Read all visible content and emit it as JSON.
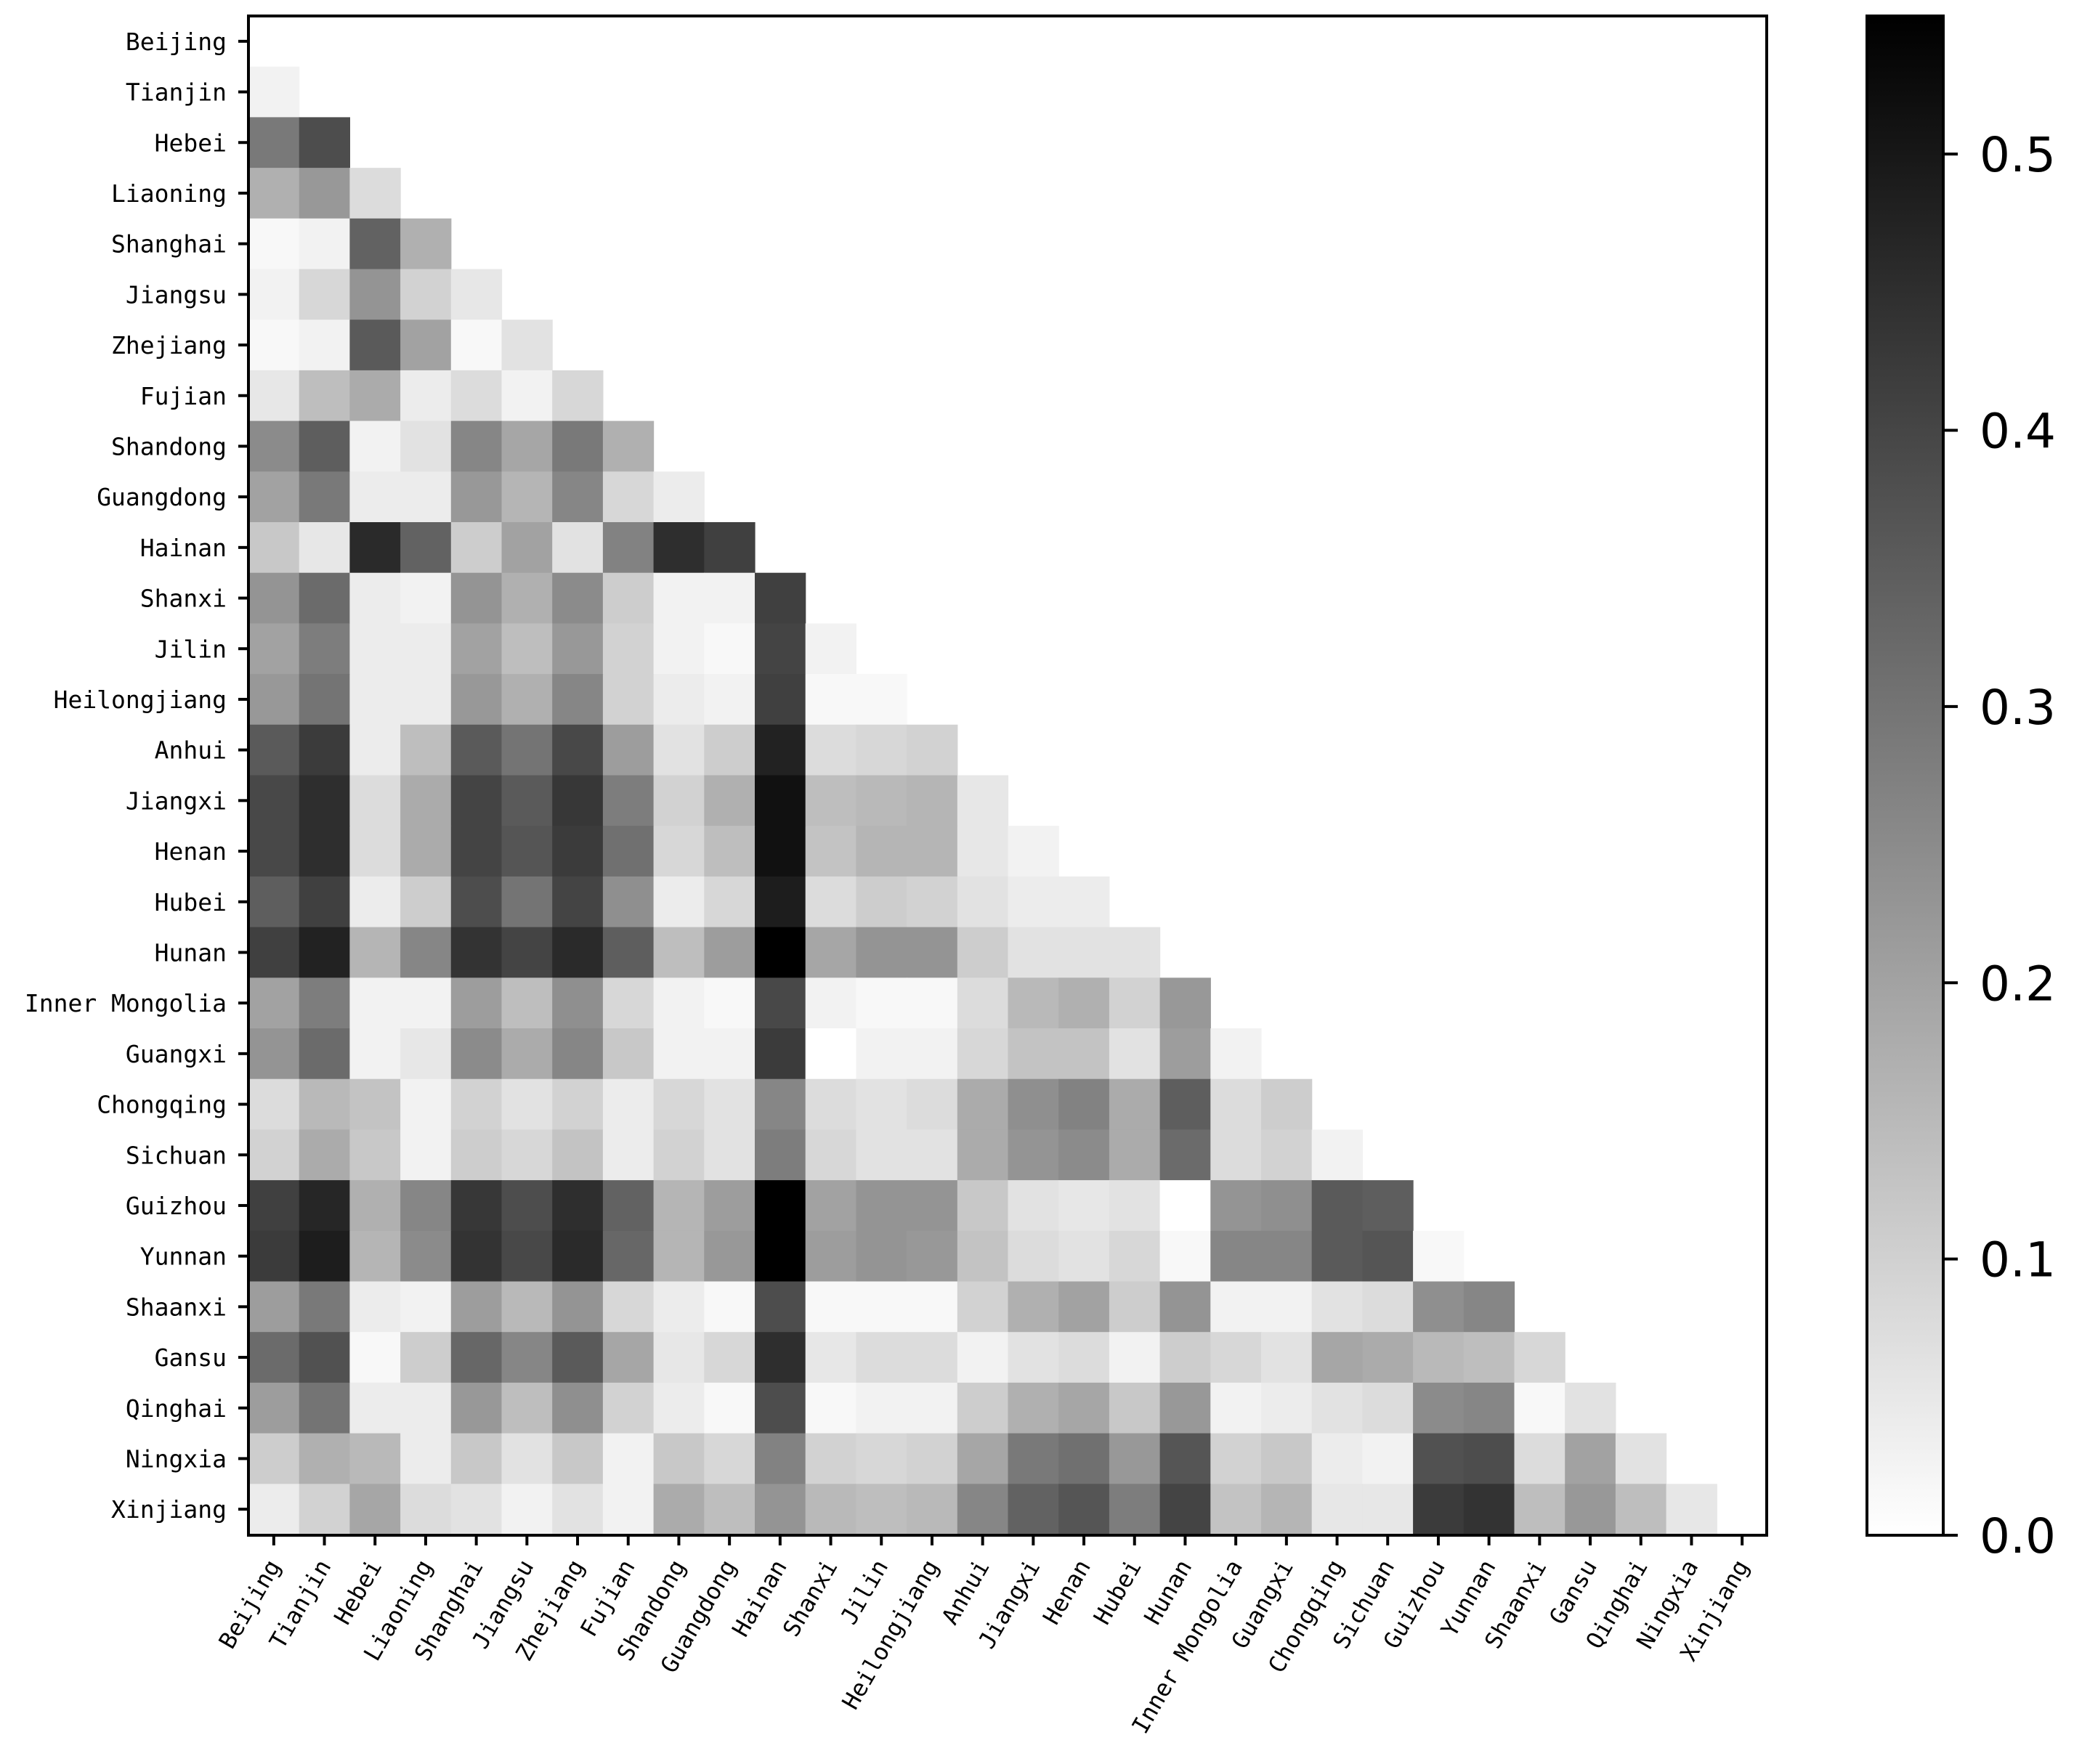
{
  "chart_data": {
    "type": "heatmap",
    "title": "",
    "xlabel": "",
    "ylabel": "",
    "provinces": [
      "Beijing",
      "Tianjin",
      "Hebei",
      "Liaoning",
      "Shanghai",
      "Jiangsu",
      "Zhejiang",
      "Fujian",
      "Shandong",
      "Guangdong",
      "Hainan",
      "Shanxi",
      "Jilin",
      "Heilongjiang",
      "Anhui",
      "Jiangxi",
      "Henan",
      "Hubei",
      "Hunan",
      "Inner Mongolia",
      "Guangxi",
      "Chongqing",
      "Sichuan",
      "Guizhou",
      "Yunnan",
      "Shaanxi",
      "Gansu",
      "Qinghai",
      "Ningxia",
      "Xinjiang"
    ],
    "mask": "lower-triangle",
    "colormap": "Greys",
    "value_range": [
      0.0,
      0.55
    ],
    "colorbar_ticks": [
      "0.0",
      "0.1",
      "0.2",
      "0.3",
      "0.4",
      "0.5"
    ],
    "rows": [
      [],
      [
        0.02
      ],
      [
        0.27,
        0.37
      ],
      [
        0.15,
        0.2,
        0.06
      ],
      [
        0.01,
        0.02,
        0.32,
        0.15
      ],
      [
        0.02,
        0.07,
        0.21,
        0.08,
        0.04
      ],
      [
        0.01,
        0.02,
        0.34,
        0.18,
        0.01,
        0.05
      ],
      [
        0.04,
        0.12,
        0.16,
        0.03,
        0.06,
        0.02,
        0.07
      ],
      [
        0.23,
        0.33,
        0.02,
        0.05,
        0.24,
        0.17,
        0.27,
        0.15
      ],
      [
        0.18,
        0.27,
        0.03,
        0.03,
        0.2,
        0.14,
        0.24,
        0.07,
        0.03
      ],
      [
        0.1,
        0.04,
        0.45,
        0.32,
        0.09,
        0.18,
        0.05,
        0.25,
        0.44,
        0.4
      ],
      [
        0.21,
        0.3,
        0.03,
        0.02,
        0.21,
        0.15,
        0.23,
        0.09,
        0.02,
        0.02,
        0.4
      ],
      [
        0.18,
        0.26,
        0.03,
        0.03,
        0.18,
        0.12,
        0.2,
        0.08,
        0.02,
        0.01,
        0.39,
        0.02
      ],
      [
        0.2,
        0.28,
        0.03,
        0.03,
        0.2,
        0.15,
        0.24,
        0.08,
        0.03,
        0.02,
        0.4,
        0.01,
        0.01
      ],
      [
        0.34,
        0.41,
        0.03,
        0.12,
        0.34,
        0.28,
        0.38,
        0.19,
        0.05,
        0.09,
        0.47,
        0.06,
        0.07,
        0.08
      ],
      [
        0.38,
        0.44,
        0.06,
        0.16,
        0.39,
        0.34,
        0.42,
        0.26,
        0.08,
        0.15,
        0.51,
        0.12,
        0.13,
        0.14,
        0.04
      ],
      [
        0.38,
        0.44,
        0.06,
        0.16,
        0.39,
        0.35,
        0.41,
        0.29,
        0.07,
        0.12,
        0.51,
        0.11,
        0.14,
        0.14,
        0.04,
        0.02
      ],
      [
        0.33,
        0.4,
        0.03,
        0.09,
        0.37,
        0.28,
        0.39,
        0.22,
        0.03,
        0.07,
        0.48,
        0.06,
        0.09,
        0.08,
        0.05,
        0.03,
        0.03
      ],
      [
        0.4,
        0.47,
        0.14,
        0.24,
        0.43,
        0.39,
        0.45,
        0.33,
        0.12,
        0.19,
        0.55,
        0.17,
        0.21,
        0.21,
        0.09,
        0.05,
        0.05,
        0.05
      ],
      [
        0.18,
        0.26,
        0.02,
        0.02,
        0.19,
        0.12,
        0.22,
        0.07,
        0.02,
        0.01,
        0.38,
        0.02,
        0.01,
        0.01,
        0.06,
        0.13,
        0.15,
        0.08,
        0.2
      ],
      [
        0.21,
        0.3,
        0.02,
        0.04,
        0.23,
        0.16,
        0.24,
        0.1,
        0.02,
        0.02,
        0.41,
        0.0,
        0.02,
        0.02,
        0.07,
        0.11,
        0.11,
        0.05,
        0.19,
        0.02
      ],
      [
        0.06,
        0.13,
        0.11,
        0.02,
        0.08,
        0.05,
        0.08,
        0.03,
        0.07,
        0.05,
        0.24,
        0.06,
        0.05,
        0.06,
        0.16,
        0.22,
        0.25,
        0.16,
        0.33,
        0.06,
        0.09
      ],
      [
        0.08,
        0.16,
        0.1,
        0.02,
        0.09,
        0.07,
        0.11,
        0.03,
        0.08,
        0.05,
        0.26,
        0.07,
        0.05,
        0.05,
        0.16,
        0.21,
        0.23,
        0.16,
        0.3,
        0.06,
        0.08,
        0.02
      ],
      [
        0.4,
        0.46,
        0.15,
        0.24,
        0.42,
        0.37,
        0.44,
        0.32,
        0.14,
        0.19,
        0.55,
        0.18,
        0.21,
        0.21,
        0.1,
        0.05,
        0.04,
        0.05,
        0.0,
        0.21,
        0.22,
        0.34,
        0.33
      ],
      [
        0.41,
        0.48,
        0.14,
        0.23,
        0.43,
        0.38,
        0.45,
        0.31,
        0.14,
        0.2,
        0.55,
        0.19,
        0.21,
        0.2,
        0.11,
        0.06,
        0.05,
        0.07,
        0.01,
        0.24,
        0.24,
        0.34,
        0.35,
        0.01
      ],
      [
        0.19,
        0.27,
        0.03,
        0.02,
        0.19,
        0.13,
        0.21,
        0.07,
        0.03,
        0.01,
        0.37,
        0.01,
        0.01,
        0.01,
        0.08,
        0.15,
        0.18,
        0.09,
        0.21,
        0.02,
        0.02,
        0.05,
        0.06,
        0.22,
        0.24
      ],
      [
        0.3,
        0.36,
        0.01,
        0.09,
        0.31,
        0.24,
        0.34,
        0.17,
        0.04,
        0.07,
        0.44,
        0.04,
        0.06,
        0.06,
        0.02,
        0.05,
        0.06,
        0.02,
        0.09,
        0.07,
        0.05,
        0.17,
        0.16,
        0.13,
        0.12,
        0.07
      ],
      [
        0.19,
        0.28,
        0.03,
        0.03,
        0.2,
        0.12,
        0.22,
        0.08,
        0.03,
        0.01,
        0.37,
        0.01,
        0.02,
        0.02,
        0.09,
        0.15,
        0.17,
        0.1,
        0.2,
        0.02,
        0.03,
        0.05,
        0.06,
        0.23,
        0.24,
        0.01,
        0.05
      ],
      [
        0.09,
        0.15,
        0.13,
        0.03,
        0.1,
        0.05,
        0.1,
        0.02,
        0.1,
        0.07,
        0.25,
        0.08,
        0.07,
        0.08,
        0.17,
        0.27,
        0.29,
        0.2,
        0.35,
        0.08,
        0.1,
        0.03,
        0.02,
        0.36,
        0.37,
        0.06,
        0.18,
        0.05
      ],
      [
        0.03,
        0.08,
        0.17,
        0.06,
        0.05,
        0.02,
        0.05,
        0.02,
        0.16,
        0.12,
        0.21,
        0.13,
        0.12,
        0.13,
        0.24,
        0.32,
        0.35,
        0.26,
        0.39,
        0.11,
        0.14,
        0.04,
        0.04,
        0.41,
        0.43,
        0.12,
        0.2,
        0.12,
        0.04
      ]
    ]
  }
}
